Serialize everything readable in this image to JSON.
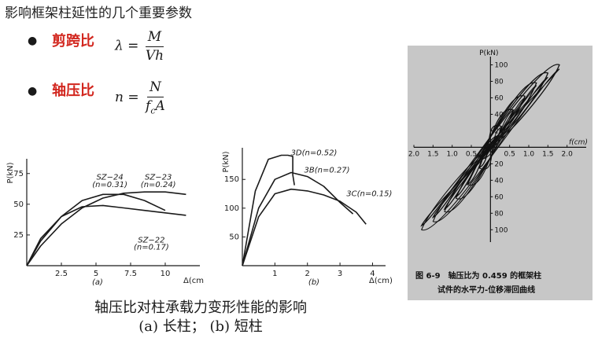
{
  "page": {
    "title": "影响框架柱延性的几个重要参数",
    "bullets": [
      {
        "label": "剪跨比",
        "formula": {
          "lhs": "λ =",
          "num": "M",
          "den": "Vh"
        }
      },
      {
        "label": "轴压比",
        "formula": {
          "lhs": "n =",
          "num": "N",
          "den_main": "f",
          "den_sub": "c",
          "den_tail": "A"
        }
      }
    ],
    "caption": {
      "main": "轴压比对柱承载力变形性能的影响",
      "sub": "(a) 长柱； (b) 短柱"
    }
  },
  "colors": {
    "bullet_label": "#d2261e",
    "photo_bg": "#c7c7c7",
    "ink": "#1a1a1a"
  },
  "chart_data": [
    {
      "id": "a",
      "type": "line",
      "title": "",
      "xlabel": "Δ(cm)",
      "ylabel": "P(kN)",
      "panel_label": "(a)",
      "xlim": [
        0,
        12.5
      ],
      "ylim": [
        0,
        87
      ],
      "xticks": [
        2.5,
        5,
        7.5,
        10
      ],
      "xtick_labels": [
        "2.5",
        "5",
        "7.5",
        "10"
      ],
      "yticks": [
        25,
        50,
        75
      ],
      "ytick_labels": [
        "25",
        "50",
        "75"
      ],
      "annotations": [
        {
          "text": "SZ−24",
          "x": 6.0,
          "y": 70
        },
        {
          "text": "(n=0.31)",
          "x": 6.0,
          "y": 64
        },
        {
          "text": "SZ−23",
          "x": 9.5,
          "y": 70
        },
        {
          "text": "(n=0.24)",
          "x": 9.5,
          "y": 64
        },
        {
          "text": "SZ−22",
          "x": 9.0,
          "y": 19
        },
        {
          "text": "(n=0.17)",
          "x": 9.0,
          "y": 13
        }
      ],
      "series": [
        {
          "x": [
            0,
            1,
            2.5,
            4,
            5.5,
            7,
            8.5,
            10,
            11.5
          ],
          "values": [
            0,
            22,
            40,
            48,
            49,
            47,
            45,
            43,
            41
          ]
        },
        {
          "x": [
            0,
            1,
            2.5,
            4,
            5.5,
            7,
            8.5,
            10
          ],
          "values": [
            0,
            20,
            40,
            53,
            58,
            58,
            53,
            45
          ]
        },
        {
          "x": [
            0,
            1,
            2.5,
            4,
            5.5,
            7,
            8.5,
            10,
            11.5
          ],
          "values": [
            0,
            16,
            34,
            47,
            55,
            59,
            60,
            60,
            58
          ]
        }
      ]
    },
    {
      "id": "b",
      "type": "line",
      "title": "",
      "xlabel": "Δ(cm)",
      "ylabel": "P(kN)",
      "panel_label": "(b)",
      "xlim": [
        0,
        4.4
      ],
      "ylim": [
        0,
        205
      ],
      "xticks": [
        1,
        2,
        3,
        4
      ],
      "xtick_labels": [
        "1",
        "2",
        "3",
        "4"
      ],
      "yticks": [
        50,
        100,
        150
      ],
      "ytick_labels": [
        "50",
        "100",
        "150"
      ],
      "annotations": [
        {
          "text": "3D(n=0.52)",
          "x": 2.2,
          "y": 192
        },
        {
          "text": "3B(n=0.27)",
          "x": 2.6,
          "y": 162
        },
        {
          "text": "3C(n=0.15)",
          "x": 3.9,
          "y": 121
        }
      ],
      "series": [
        {
          "x": [
            0,
            0.4,
            0.8,
            1.2,
            1.4,
            1.55,
            1.55,
            1.6
          ],
          "values": [
            0,
            130,
            185,
            192,
            192,
            190,
            158,
            140
          ]
        },
        {
          "x": [
            0,
            0.5,
            1.0,
            1.5,
            2.0,
            2.5,
            3.0,
            3.4
          ],
          "values": [
            0,
            100,
            150,
            162,
            155,
            138,
            110,
            90
          ]
        },
        {
          "x": [
            0,
            0.5,
            1.0,
            1.5,
            2.0,
            2.5,
            3.0,
            3.5,
            3.8
          ],
          "values": [
            0,
            85,
            125,
            133,
            130,
            123,
            112,
            93,
            72
          ]
        }
      ]
    },
    {
      "id": "fig69",
      "type": "line",
      "title": "图 6-9　轴压比为 0.459 的框架柱",
      "subtitle": "试件的水平力-位移滞回曲线",
      "xlabel": "f(cm)",
      "ylabel": "P(kN)",
      "xlim": [
        -2.0,
        2.5
      ],
      "ylim": [
        -115,
        110
      ],
      "xticks": [
        -2.0,
        -1.5,
        -1.0,
        -0.5,
        0.5,
        1.0,
        1.5,
        2.0
      ],
      "xtick_labels": [
        "2.0",
        "1.5",
        "1.0",
        "0.5",
        "0.5",
        "1.0",
        "1.5",
        "2.0"
      ],
      "yticks": [
        -100,
        -80,
        -60,
        -40,
        -20,
        20,
        40,
        60,
        80,
        100
      ],
      "ytick_labels": [
        "100",
        "80",
        "60",
        "40",
        "20",
        "20",
        "40",
        "60",
        "80",
        "100"
      ],
      "series": [
        {
          "x": [
            -0.3,
            0.3,
            0,
            -0.3
          ],
          "values": [
            -25,
            25,
            8,
            -25
          ]
        },
        {
          "x": [
            -0.6,
            0.6,
            0.1,
            -0.6
          ],
          "values": [
            -45,
            45,
            10,
            -45
          ]
        },
        {
          "x": [
            -0.9,
            0.9,
            0.2,
            -0.9
          ],
          "values": [
            -60,
            62,
            12,
            -60
          ]
        },
        {
          "x": [
            -1.2,
            1.2,
            0.3,
            -1.2
          ],
          "values": [
            -75,
            78,
            15,
            -75
          ]
        },
        {
          "x": [
            -1.5,
            1.5,
            0.4,
            -1.5
          ],
          "values": [
            -85,
            90,
            18,
            -85
          ]
        },
        {
          "x": [
            -1.8,
            1.8,
            0.5,
            -1.8
          ],
          "values": [
            -95,
            100,
            20,
            -95
          ]
        }
      ]
    }
  ]
}
